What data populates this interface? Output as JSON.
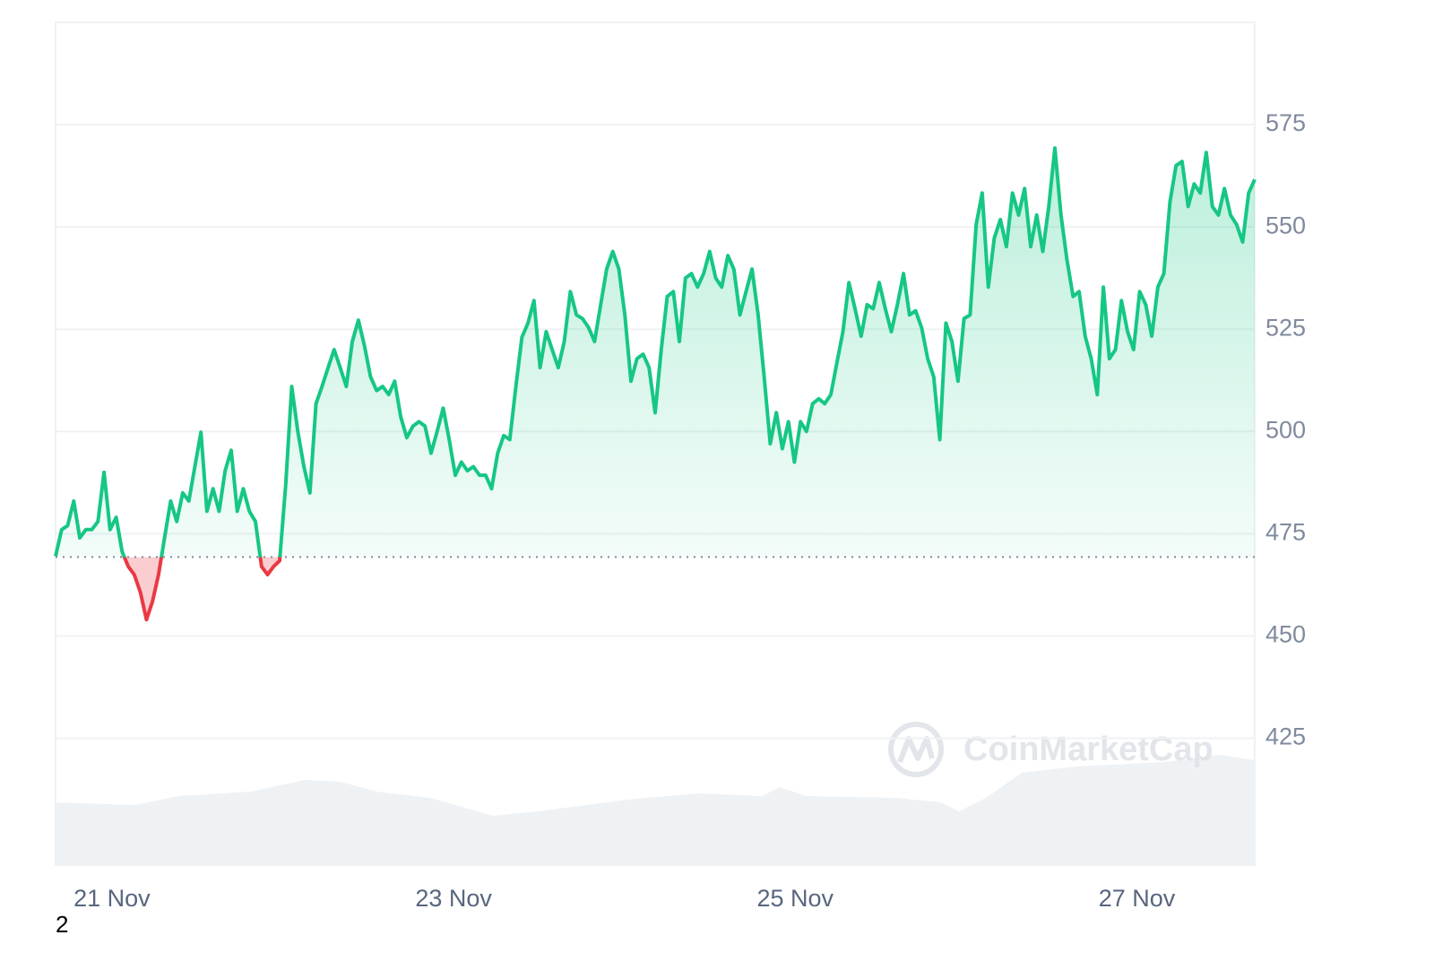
{
  "chart_data": {
    "type": "line",
    "watermark": "CoinMarketCap",
    "footnote": "2",
    "baseline": 469.3,
    "up_color": "#16c784",
    "down_color": "#ea3943",
    "xlim": [
      20.67,
      27.69
    ],
    "xticks": [
      {
        "value": 21,
        "label": "21 Nov"
      },
      {
        "value": 23,
        "label": "23 Nov"
      },
      {
        "value": 25,
        "label": "25 Nov"
      },
      {
        "value": 27,
        "label": "27 Nov"
      }
    ],
    "ylim": [
      394,
      600
    ],
    "yticks": [
      425,
      450,
      475,
      500,
      525,
      550,
      575
    ],
    "grid": true,
    "values": [
      469.5,
      476,
      477,
      483,
      474,
      476,
      476,
      478,
      490,
      476,
      479,
      470.6,
      467,
      465,
      460.7,
      454,
      458.4,
      465,
      474,
      483,
      478,
      485,
      483,
      491.4,
      499.8,
      480.5,
      486,
      480.5,
      490.4,
      495.4,
      480.5,
      486,
      480.5,
      478,
      467,
      465,
      467,
      468.4,
      487,
      511,
      500,
      491.4,
      485,
      506.8,
      511,
      515.6,
      520,
      515.6,
      511,
      522,
      527.2,
      521,
      513.4,
      510,
      511,
      509,
      512.3,
      503.5,
      498.5,
      501.3,
      502.4,
      501.3,
      494.7,
      500,
      505.7,
      498,
      489.3,
      492.5,
      490.4,
      491.4,
      489.3,
      489.3,
      486,
      494.7,
      499,
      498,
      511,
      523,
      526.5,
      532,
      515.6,
      524.4,
      520,
      515.6,
      522,
      534.2,
      528.5,
      527.6,
      525.4,
      522,
      531,
      539.7,
      544,
      539.7,
      528.5,
      512.3,
      517.8,
      518.9,
      515.6,
      504.6,
      520,
      533,
      534.2,
      522,
      537.5,
      538.6,
      535.3,
      538.6,
      544,
      537.5,
      535.3,
      543,
      539.7,
      528.5,
      534.2,
      539.7,
      528.5,
      513.4,
      497,
      504.6,
      495.8,
      502.4,
      492.5,
      502.4,
      500,
      506.8,
      508,
      506.8,
      509,
      516.7,
      524.4,
      536.4,
      530,
      523.3,
      531,
      530,
      536.4,
      530,
      524.4,
      531,
      538.6,
      528.5,
      529.5,
      525.4,
      517.8,
      513.4,
      498,
      526.5,
      522,
      512.3,
      527.6,
      528.5,
      550.6,
      558.3,
      535.3,
      547.3,
      551.8,
      545.2,
      558.3,
      552.9,
      559.4,
      545.2,
      552.9,
      544,
      555,
      569.3,
      552.9,
      541.9,
      533,
      534.2,
      523.3,
      517.8,
      509,
      535.3,
      517.8,
      520,
      532,
      524.4,
      520,
      534.2,
      531,
      523.3,
      535.3,
      538.6,
      556.1,
      565,
      566,
      555,
      560.5,
      558.3,
      568.2,
      555,
      552.9,
      559.4,
      552.9,
      550.6,
      546.3,
      558.3,
      561.6
    ]
  }
}
